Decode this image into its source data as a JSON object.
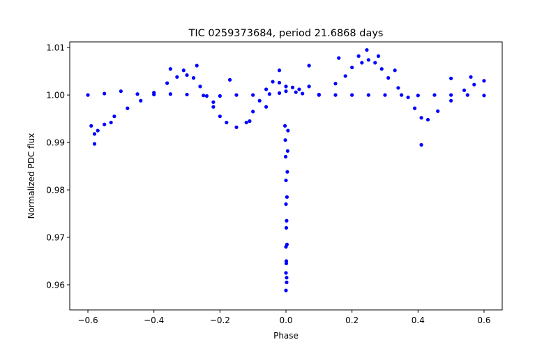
{
  "chart_data": {
    "type": "scatter",
    "title": "TIC 0259373684, period 21.6868 days",
    "xlabel": "Phase",
    "ylabel": "Normalized PDC flux",
    "xlim": [
      -0.655,
      0.655
    ],
    "ylim": [
      0.9547,
      1.0112
    ],
    "xticks": [
      -0.6,
      -0.4,
      -0.2,
      0.0,
      0.2,
      0.4,
      0.6
    ],
    "xtick_labels": [
      "−0.6",
      "−0.4",
      "−0.2",
      "0.0",
      "0.2",
      "0.4",
      "0.6"
    ],
    "yticks": [
      0.96,
      0.97,
      0.98,
      0.99,
      1.0,
      1.01
    ],
    "ytick_labels": [
      "0.96",
      "0.97",
      "0.98",
      "0.99",
      "1.00",
      "1.01"
    ],
    "grid": false,
    "marker_color": "#0000ff",
    "series": [
      {
        "points": [
          [
            -0.6,
            1.0
          ],
          [
            -0.55,
            1.0003
          ],
          [
            -0.5,
            1.0008
          ],
          [
            -0.45,
            1.0002
          ],
          [
            -0.4,
            1.0001
          ],
          [
            -0.35,
            1.0002
          ],
          [
            -0.3,
            1.0001
          ],
          [
            -0.25,
            0.9999
          ],
          [
            -0.2,
            0.9998
          ],
          [
            -0.15,
            1.0
          ],
          [
            -0.1,
            1.0
          ],
          [
            -0.05,
            1.0002
          ],
          [
            -0.02,
            1.0004
          ],
          [
            0.0,
            1.0008
          ],
          [
            0.03,
            1.0006
          ],
          [
            0.05,
            1.0003
          ],
          [
            0.1,
            1.0001
          ],
          [
            0.15,
            1.0
          ],
          [
            0.2,
            1.0
          ],
          [
            0.25,
            1.0
          ],
          [
            0.3,
            1.0
          ],
          [
            0.35,
            1.0
          ],
          [
            0.4,
            0.9999
          ],
          [
            0.45,
            1.0
          ],
          [
            0.5,
            1.0
          ],
          [
            0.55,
            1.0
          ],
          [
            0.6,
            0.9999
          ],
          [
            -0.59,
            0.9935
          ],
          [
            -0.58,
            0.9918
          ],
          [
            -0.57,
            0.9925
          ],
          [
            -0.55,
            0.9938
          ],
          [
            -0.52,
            0.9955
          ],
          [
            -0.48,
            0.9972
          ],
          [
            -0.44,
            0.9988
          ],
          [
            -0.4,
            1.0005
          ],
          [
            -0.36,
            1.0025
          ],
          [
            -0.33,
            1.0038
          ],
          [
            -0.3,
            1.0042
          ],
          [
            -0.28,
            1.0036
          ],
          [
            -0.26,
            1.0018
          ],
          [
            -0.24,
            0.9998
          ],
          [
            -0.22,
            0.9975
          ],
          [
            -0.2,
            0.9955
          ],
          [
            -0.18,
            0.9942
          ],
          [
            -0.15,
            0.9932
          ],
          [
            -0.12,
            0.9942
          ],
          [
            -0.1,
            0.9965
          ],
          [
            -0.08,
            0.9988
          ],
          [
            -0.06,
            1.0012
          ],
          [
            -0.04,
            1.0028
          ],
          [
            -0.02,
            1.0026
          ],
          [
            0.0,
            1.0018
          ],
          [
            0.02,
            1.0016
          ],
          [
            0.04,
            1.0012
          ],
          [
            0.07,
            1.0018
          ],
          [
            0.1,
            1.0
          ],
          [
            0.15,
            1.0024
          ],
          [
            0.18,
            1.004
          ],
          [
            0.2,
            1.0058
          ],
          [
            0.23,
            1.0068
          ],
          [
            0.25,
            1.0074
          ],
          [
            0.27,
            1.0068
          ],
          [
            0.29,
            1.0055
          ],
          [
            0.31,
            1.0036
          ],
          [
            0.34,
            1.0015
          ],
          [
            0.37,
            0.9995
          ],
          [
            0.39,
            0.9972
          ],
          [
            0.41,
            0.9952
          ],
          [
            0.43,
            0.9948
          ],
          [
            0.46,
            0.9966
          ],
          [
            0.5,
            0.9988
          ],
          [
            0.54,
            1.001
          ],
          [
            0.57,
            1.0022
          ],
          [
            0.6,
            1.003
          ],
          [
            -0.58,
            0.9897
          ],
          [
            -0.53,
            0.9942
          ],
          [
            -0.35,
            1.0055
          ],
          [
            -0.31,
            1.0052
          ],
          [
            -0.27,
            1.0062
          ],
          [
            -0.22,
            0.9985
          ],
          [
            -0.17,
            1.0032
          ],
          [
            -0.11,
            0.9945
          ],
          [
            -0.06,
            0.9975
          ],
          [
            -0.02,
            1.0052
          ],
          [
            0.07,
            1.0062
          ],
          [
            0.16,
            1.0078
          ],
          [
            0.22,
            1.0082
          ],
          [
            0.245,
            1.0095
          ],
          [
            0.28,
            1.0082
          ],
          [
            0.33,
            1.0052
          ],
          [
            0.41,
            0.9895
          ],
          [
            0.5,
            1.0035
          ],
          [
            0.56,
            1.0038
          ],
          [
            -0.003,
            0.9935
          ],
          [
            -0.002,
            0.9905
          ],
          [
            -0.001,
            0.987
          ],
          [
            0.0,
            0.982
          ],
          [
            0.0,
            0.977
          ],
          [
            0.001,
            0.972
          ],
          [
            0.0,
            0.968
          ],
          [
            0.001,
            0.965
          ],
          [
            0.0,
            0.9625
          ],
          [
            0.002,
            0.9605
          ],
          [
            0.0,
            0.9588
          ],
          [
            0.002,
            0.9615
          ],
          [
            0.001,
            0.9645
          ],
          [
            0.003,
            0.9685
          ],
          [
            0.002,
            0.9735
          ],
          [
            0.003,
            0.9785
          ],
          [
            0.004,
            0.9838
          ],
          [
            0.005,
            0.9882
          ],
          [
            0.006,
            0.9925
          ]
        ]
      }
    ]
  }
}
